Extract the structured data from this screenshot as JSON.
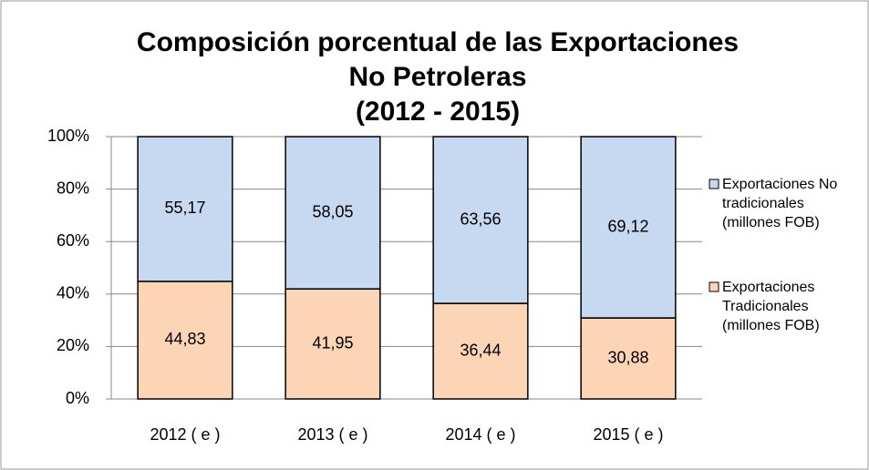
{
  "chart_data": {
    "type": "stacked_bar",
    "title": [
      "Composición porcentual de las Exportaciones",
      "No Petroleras",
      "(2012 - 2015)"
    ],
    "categories": [
      "2012 ( e )",
      "2013 ( e )",
      "2014 ( e )",
      "2015 ( e )"
    ],
    "series": [
      {
        "name": "Exportaciones Tradicionales (millones FOB)",
        "color": "#fbd5b5",
        "values": [
          44.83,
          41.95,
          36.44,
          30.88
        ],
        "value_labels": [
          "44,83",
          "41,95",
          "36,44",
          "30,88"
        ]
      },
      {
        "name": "Exportaciones No tradicionales (millones FOB)",
        "color": "#c6d9f1",
        "values": [
          55.17,
          58.05,
          63.56,
          69.12
        ],
        "value_labels": [
          "55,17",
          "58,05",
          "63,56",
          "69,12"
        ]
      }
    ],
    "ylim": [
      0,
      100
    ],
    "yticks": [
      {
        "value": 0,
        "label": "0%"
      },
      {
        "value": 20,
        "label": "20%"
      },
      {
        "value": 40,
        "label": "40%"
      },
      {
        "value": 60,
        "label": "60%"
      },
      {
        "value": 80,
        "label": "80%"
      },
      {
        "value": 100,
        "label": "100%"
      }
    ],
    "grid": true
  }
}
